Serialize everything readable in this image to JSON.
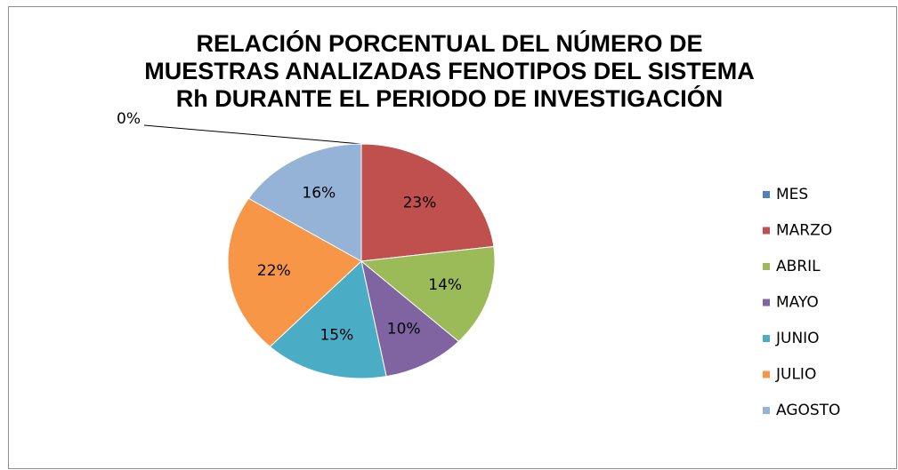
{
  "chart_data": {
    "type": "pie",
    "title": "RELACIÓN PORCENTUAL DEL NÚMERO DE MUESTRAS ANALIZADAS FENOTIPOS DEL SISTEMA Rh DURANTE EL PERIODO DE INVESTIGACIÓN",
    "categories": [
      "MES",
      "MARZO",
      "ABRIL",
      "MAYO",
      "JUNIO",
      "JULIO",
      "AGOSTO"
    ],
    "values": [
      0,
      23,
      14,
      10,
      15,
      22,
      16
    ],
    "value_labels": [
      "0%",
      "23%",
      "14%",
      "10%",
      "15%",
      "22%",
      "16%"
    ],
    "colors": [
      "#4f81bd",
      "#c0504d",
      "#9bbb59",
      "#8064a2",
      "#4bacc6",
      "#f79646",
      "#95b3d7"
    ],
    "legend": "right"
  }
}
